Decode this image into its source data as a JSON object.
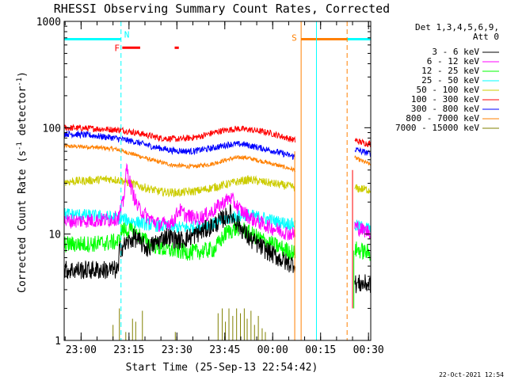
{
  "chart_data": {
    "type": "line",
    "title": "RHESSI Observing Summary Count Rates, Corrected",
    "xlabel": "Start Time (25-Sep-13 22:54:42)",
    "ylabel": "Corrected Count Rate (s⁻¹ detector⁻¹)",
    "ylabel_main": "Corrected Count Rate (s",
    "ylabel_mid": " detector",
    "ylabel_close": ")",
    "ylabel_sup": "-1",
    "y_scale": "log",
    "ylim": [
      1,
      1000
    ],
    "xlim_minutes": [
      0,
      96
    ],
    "x_ticks": [
      {
        "m": 5.3,
        "label": "23:00"
      },
      {
        "m": 20.3,
        "label": "23:15"
      },
      {
        "m": 35.3,
        "label": "23:30"
      },
      {
        "m": 50.3,
        "label": "23:45"
      },
      {
        "m": 65.3,
        "label": "00:00"
      },
      {
        "m": 80.3,
        "label": "00:15"
      },
      {
        "m": 95.3,
        "label": "00:30"
      }
    ],
    "y_ticks": [
      {
        "v": 1,
        "label": "1"
      },
      {
        "v": 10,
        "label": "10"
      },
      {
        "v": 100,
        "label": "100"
      },
      {
        "v": 1000,
        "label": "1000"
      }
    ],
    "legend_header": [
      "Det 1,3,4,5,6,9,",
      "Att 0"
    ],
    "legend_position": "right",
    "series": [
      {
        "name": "3 - 6 keV",
        "color": "#000000",
        "base": 4.6,
        "noise": 0.09,
        "data": [
          [
            0,
            4.6
          ],
          [
            17,
            4.6
          ],
          [
            17.3,
            7.2
          ],
          [
            22,
            9.3
          ],
          [
            26,
            7.3
          ],
          [
            32,
            9.6
          ],
          [
            36,
            8.7
          ],
          [
            40,
            9.5
          ],
          [
            47,
            12.2
          ],
          [
            52,
            15.5
          ],
          [
            58,
            9.0
          ],
          [
            64,
            6.8
          ],
          [
            70,
            5.3
          ],
          [
            72.3,
            5.3
          ]
        ],
        "post": [
          [
            91,
            3.4
          ],
          [
            96,
            3.4
          ]
        ]
      },
      {
        "name": "6 - 12 keV",
        "color": "#ff00ff",
        "base": 12,
        "noise": 0.07,
        "data": [
          [
            0,
            13.2
          ],
          [
            14,
            13.6
          ],
          [
            17,
            14.3
          ],
          [
            18.5,
            20
          ],
          [
            19.6,
            42
          ],
          [
            21,
            27
          ],
          [
            23,
            18
          ],
          [
            26,
            14.5
          ],
          [
            30,
            12.2
          ],
          [
            34,
            13
          ],
          [
            36,
            17
          ],
          [
            38,
            15
          ],
          [
            42,
            14
          ],
          [
            46,
            16
          ],
          [
            49,
            19
          ],
          [
            52,
            22
          ],
          [
            55,
            17
          ],
          [
            59,
            13.8
          ],
          [
            62,
            12.5
          ],
          [
            66,
            11.2
          ],
          [
            70,
            10.2
          ],
          [
            72.3,
            10.0
          ]
        ],
        "post": [
          [
            91,
            12
          ],
          [
            93,
            11
          ],
          [
            96,
            10.5
          ]
        ]
      },
      {
        "name": "12 - 25 keV",
        "color": "#00ff00",
        "base": 8,
        "noise": 0.08,
        "data": [
          [
            0,
            8.0
          ],
          [
            10,
            8.1
          ],
          [
            17,
            8.5
          ],
          [
            18,
            11
          ],
          [
            22,
            10.5
          ],
          [
            26,
            8.4
          ],
          [
            31,
            7.2
          ],
          [
            40,
            6.7
          ],
          [
            47,
            7.2
          ],
          [
            51,
            10.5
          ],
          [
            55,
            11.5
          ],
          [
            59,
            9.8
          ],
          [
            64,
            8.3
          ],
          [
            70,
            7.0
          ],
          [
            72.3,
            6.6
          ]
        ],
        "post": [
          [
            91,
            7.2
          ],
          [
            96,
            6.6
          ]
        ]
      },
      {
        "name": "25 - 50 keV",
        "color": "#00ffff",
        "base": 14,
        "noise": 0.06,
        "data": [
          [
            0,
            15.5
          ],
          [
            10,
            14.8
          ],
          [
            16,
            14.3
          ],
          [
            20,
            13.5
          ],
          [
            26,
            12.3
          ],
          [
            33,
            11.6
          ],
          [
            40,
            11.5
          ],
          [
            47,
            12.5
          ],
          [
            53,
            14.5
          ],
          [
            57,
            15.2
          ],
          [
            62,
            14.3
          ],
          [
            67,
            13
          ],
          [
            72.3,
            12.3
          ]
        ],
        "post": [
          [
            91,
            12
          ],
          [
            96,
            11.2
          ]
        ]
      },
      {
        "name": "50 - 100 keV",
        "color": "#cccc00",
        "base": 30,
        "noise": 0.04,
        "data": [
          [
            0,
            31
          ],
          [
            8,
            32
          ],
          [
            14,
            33
          ],
          [
            18,
            32
          ],
          [
            24,
            28
          ],
          [
            30,
            25
          ],
          [
            36,
            24.5
          ],
          [
            42,
            25.5
          ],
          [
            48,
            28
          ],
          [
            54,
            31
          ],
          [
            58,
            32.5
          ],
          [
            62,
            31
          ],
          [
            68,
            29
          ],
          [
            72.3,
            27.5
          ]
        ],
        "post": [
          [
            91,
            27
          ],
          [
            96,
            26
          ]
        ]
      },
      {
        "name": "100 - 300 keV",
        "color": "#ff0000",
        "base": 90,
        "noise": 0.03,
        "data": [
          [
            0,
            100
          ],
          [
            10,
            98
          ],
          [
            18,
            95
          ],
          [
            24,
            88
          ],
          [
            30,
            80
          ],
          [
            36,
            78
          ],
          [
            42,
            82
          ],
          [
            48,
            92
          ],
          [
            54,
            98
          ],
          [
            58,
            96
          ],
          [
            64,
            90
          ],
          [
            68,
            83
          ],
          [
            72.3,
            76
          ]
        ],
        "post": [
          [
            91,
            76
          ],
          [
            93,
            73
          ],
          [
            96,
            70
          ]
        ]
      },
      {
        "name": "300 - 800 keV",
        "color": "#0000ff",
        "base": 85,
        "noise": 0.03,
        "data": [
          [
            0,
            88
          ],
          [
            8,
            85
          ],
          [
            16,
            80
          ],
          [
            22,
            74
          ],
          [
            28,
            66
          ],
          [
            34,
            61
          ],
          [
            40,
            60
          ],
          [
            46,
            64
          ],
          [
            52,
            70
          ],
          [
            56,
            70
          ],
          [
            60,
            66
          ],
          [
            66,
            60
          ],
          [
            72.3,
            53
          ]
        ],
        "post": [
          [
            91,
            63
          ],
          [
            93,
            60
          ],
          [
            96,
            57
          ]
        ]
      },
      {
        "name": "800 - 7000 keV",
        "color": "#ff8000",
        "base": 60,
        "noise": 0.02,
        "data": [
          [
            0,
            67
          ],
          [
            8,
            66
          ],
          [
            16,
            63
          ],
          [
            22,
            56
          ],
          [
            28,
            49
          ],
          [
            34,
            44.5
          ],
          [
            40,
            43
          ],
          [
            46,
            45.5
          ],
          [
            52,
            51
          ],
          [
            56,
            53
          ],
          [
            60,
            50
          ],
          [
            66,
            45
          ],
          [
            72.3,
            40
          ]
        ],
        "post": [
          [
            91,
            52
          ],
          [
            93,
            49
          ],
          [
            96,
            45
          ]
        ]
      },
      {
        "name": "7000 - 15000 keV",
        "color": "#808000",
        "base": 1,
        "noise": 0,
        "data": [],
        "post": []
      }
    ],
    "bursts": {
      "series": "7000 - 15000 keV",
      "near_minutes": [
        [
          15.3,
          1.4
        ],
        [
          17.3,
          2.0
        ],
        [
          19.3,
          1.2
        ],
        [
          21.4,
          1.6
        ],
        [
          22.4,
          1.5
        ],
        [
          24.5,
          1.9
        ],
        [
          34.8,
          1.2
        ],
        [
          48.2,
          1.8
        ],
        [
          49.5,
          2.0
        ],
        [
          50.5,
          1.5
        ],
        [
          51.6,
          2.0
        ],
        [
          52.8,
          1.7
        ],
        [
          54.0,
          2.0
        ],
        [
          55.2,
          1.8
        ],
        [
          56.4,
          2.0
        ],
        [
          57.3,
          1.6
        ],
        [
          58.5,
          1.9
        ],
        [
          59.6,
          1.4
        ],
        [
          60.8,
          1.7
        ],
        [
          62.0,
          1.3
        ],
        [
          63.0,
          1.2
        ]
      ]
    },
    "drops": [
      {
        "m": 72.2,
        "color": "#ff8000",
        "bottom": 1,
        "top": 60
      },
      {
        "m": 90.3,
        "color": "#ff0000",
        "bottom": 2,
        "top": 40
      },
      {
        "m": 90.7,
        "color": "#00ff00",
        "bottom": 2,
        "top": 7
      }
    ],
    "annotations": {
      "night": {
        "label": "N",
        "color": "#00ffff",
        "y": 680,
        "segments": [
          [
            0,
            17.8
          ],
          [
            79,
            96
          ]
        ],
        "dashed_at": [
          17.8,
          96
        ],
        "solid_at": [
          0,
          79
        ]
      },
      "saa": {
        "label": "S",
        "color": "#ff8000",
        "y": 680,
        "segments": [
          [
            74.2,
            88.6
          ]
        ],
        "solid_at": [
          74.2
        ],
        "dashed_at": [
          88.6
        ]
      },
      "flare": {
        "label": "F",
        "color": "#ff0000",
        "y": 565,
        "segments": [
          [
            18.2,
            23.8
          ],
          [
            34.6,
            35.9
          ]
        ]
      }
    }
  },
  "footer": {
    "timestamp": "22-Oct-2021 12:54"
  }
}
